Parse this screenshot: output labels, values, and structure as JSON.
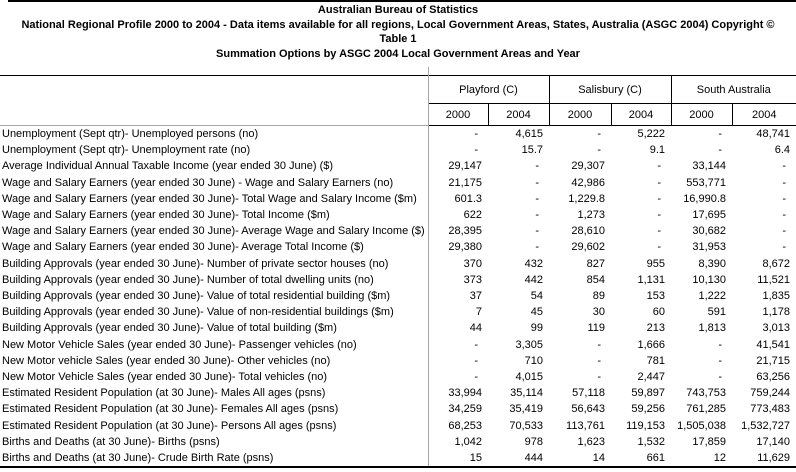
{
  "header": {
    "line1": "Australian Bureau of Statistics",
    "line2": "National Regional Profile 2000 to 2004 - Data items available for all regions, Local Government Areas, States, Australia (ASGC 2004) Copyright ©",
    "line3": "Table 1",
    "line4": "Summation Options by ASGC 2004 Local Government Areas and Year"
  },
  "colors": {
    "background": "#ffffff",
    "rule_black": "#000000",
    "grid_gray": "#a6a6a6"
  },
  "table": {
    "column_groups": [
      {
        "label": "Playford (C)",
        "years": [
          "2000",
          "2004"
        ]
      },
      {
        "label": "Salisbury (C)",
        "years": [
          "2000",
          "2004"
        ]
      },
      {
        "label": "South Australia",
        "years": [
          "2000",
          "2004"
        ]
      }
    ],
    "rows": [
      {
        "label": "Unemployment (Sept qtr)- Unemployed persons (no)",
        "values": [
          "-",
          "4,615",
          "-",
          "5,222",
          "-",
          "48,741"
        ]
      },
      {
        "label": "Unemployment (Sept qtr)- Unemployment rate (no)",
        "values": [
          "-",
          "15.7",
          "-",
          "9.1",
          "-",
          "6.4"
        ]
      },
      {
        "label": "Average Individual Annual Taxable Income (year ended 30 June) ($)",
        "values": [
          "29,147",
          "-",
          "29,307",
          "-",
          "33,144",
          "-"
        ]
      },
      {
        "label": "Wage and Salary Earners (year ended 30 June) - Wage and Salary Earners (no)",
        "values": [
          "21,175",
          "-",
          "42,986",
          "-",
          "553,771",
          "-"
        ]
      },
      {
        "label": "Wage and Salary Earners (year ended 30 June)- Total Wage and Salary Income ($m)",
        "values": [
          "601.3",
          "-",
          "1,229.8",
          "-",
          "16,990.8",
          "-"
        ]
      },
      {
        "label": "Wage and Salary Earners (year ended 30 June)- Total Income ($m)",
        "values": [
          "622",
          "-",
          "1,273",
          "-",
          "17,695",
          "-"
        ]
      },
      {
        "label": "Wage and Salary Earners (year ended 30 June)- Average Wage and Salary Income ($)",
        "values": [
          "28,395",
          "-",
          "28,610",
          "-",
          "30,682",
          "-"
        ]
      },
      {
        "label": "Wage and Salary Earners (year ended 30 June)- Average Total Income ($)",
        "values": [
          "29,380",
          "-",
          "29,602",
          "-",
          "31,953",
          "-"
        ]
      },
      {
        "label": "Building Approvals (year ended 30 June)- Number of private sector houses (no)",
        "values": [
          "370",
          "432",
          "827",
          "955",
          "8,390",
          "8,672"
        ]
      },
      {
        "label": "Building Approvals (year ended 30 June)- Number of total dwelling units (no)",
        "values": [
          "373",
          "442",
          "854",
          "1,131",
          "10,130",
          "11,521"
        ]
      },
      {
        "label": "Building Approvals (year ended 30 June)- Value of total residential building ($m)",
        "values": [
          "37",
          "54",
          "89",
          "153",
          "1,222",
          "1,835"
        ]
      },
      {
        "label": "Building Approvals (year ended 30 June)- Value of non-residential buildings ($m)",
        "values": [
          "7",
          "45",
          "30",
          "60",
          "591",
          "1,178"
        ]
      },
      {
        "label": "Building Approvals (year ended 30 June)- Value of total building ($m)",
        "values": [
          "44",
          "99",
          "119",
          "213",
          "1,813",
          "3,013"
        ]
      },
      {
        "label": "New Motor Vehicle Sales (year ended 30 June)- Passenger vehicles (no)",
        "values": [
          "-",
          "3,305",
          "-",
          "1,666",
          "-",
          "41,541"
        ]
      },
      {
        "label": "New Motor vehicle Sales (year ended 30 June)- Other vehicles (no)",
        "values": [
          "-",
          "710",
          "-",
          "781",
          "-",
          "21,715"
        ]
      },
      {
        "label": "New Motor Vehicle Sales (year ended 30 June)- Total vehicles (no)",
        "values": [
          "-",
          "4,015",
          "-",
          "2,447",
          "-",
          "63,256"
        ]
      },
      {
        "label": "Estimated Resident Population (at 30 June)- Males All ages (psns)",
        "values": [
          "33,994",
          "35,114",
          "57,118",
          "59,897",
          "743,753",
          "759,244"
        ]
      },
      {
        "label": "Estimated Resident Population (at 30 June)- Females All ages (psns)",
        "values": [
          "34,259",
          "35,419",
          "56,643",
          "59,256",
          "761,285",
          "773,483"
        ]
      },
      {
        "label": "Estimated Resident Population (at 30 June)- Persons All ages (psns)",
        "values": [
          "68,253",
          "70,533",
          "113,761",
          "119,153",
          "1,505,038",
          "1,532,727"
        ]
      },
      {
        "label": "Births and Deaths (at 30 June)- Births (psns)",
        "values": [
          "1,042",
          "978",
          "1,623",
          "1,532",
          "17,859",
          "17,140"
        ]
      },
      {
        "label": "Births and Deaths (at 30 June)- Crude Birth Rate (psns)",
        "values": [
          "15",
          "444",
          "14",
          "661",
          "12",
          "11,629"
        ]
      }
    ]
  }
}
